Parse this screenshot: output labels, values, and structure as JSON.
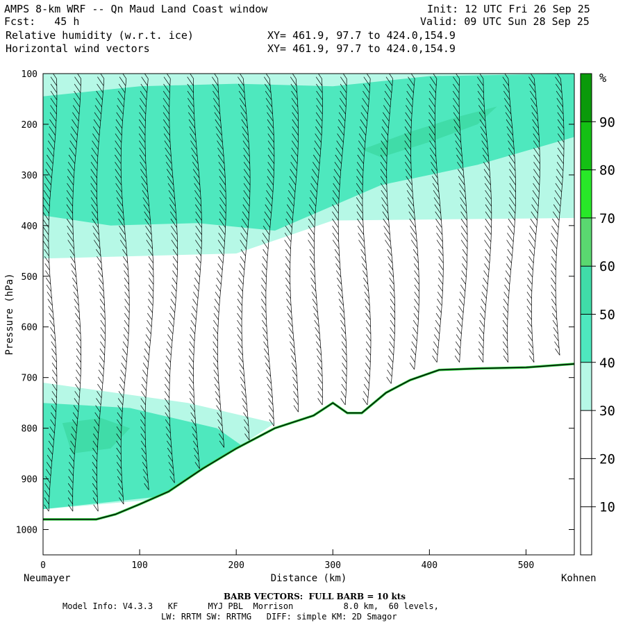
{
  "header": {
    "title": "AMPS 8-km WRF -- Qn Maud Land Coast window",
    "fcst": "Fcst:   45 h",
    "init": "Init: 12 UTC Fri 26 Sep 25",
    "valid": "Valid: 09 UTC Sun 28 Sep 25",
    "field1": "Relative humidity (w.r.t. ice)",
    "field2": "Horizontal wind vectors",
    "xy1": "XY= 461.9, 97.7 to 424.0,154.9",
    "xy2": "XY= 461.9, 97.7 to 424.0,154.9"
  },
  "footer": {
    "barb": "BARB VECTORS:  FULL BARB = 10 kts",
    "model_line1": "Model Info: V4.3.3   KF      MYJ PBL  Morrison          8.0 km,  60 levels,",
    "model_line2": "LW: RRTM SW: RRTMG   DIFF: simple KM: 2D Smagor"
  },
  "chart_data": {
    "type": "cross-section",
    "title": "Relative humidity (w.r.t. ice) and horizontal wind vectors",
    "xlabel": "Distance (km)",
    "ylabel": "Pressure (hPa)",
    "xlim": [
      0,
      550
    ],
    "ylim": [
      1050,
      100
    ],
    "x_ticks": [
      0,
      100,
      200,
      300,
      400,
      500
    ],
    "y_ticks": [
      100,
      200,
      300,
      400,
      500,
      600,
      700,
      800,
      900,
      1000
    ],
    "x_start_label": "Neumayer",
    "x_end_label": "Kohnen",
    "colorbar": {
      "unit": "%",
      "levels": [
        0,
        10,
        20,
        30,
        40,
        50,
        60,
        70,
        80,
        90,
        100
      ],
      "tick_labels": [
        "10",
        "20",
        "30",
        "40",
        "50",
        "60",
        "70",
        "80",
        "90"
      ],
      "colors": [
        "#ffffff",
        "#ffffff",
        "#ffffff",
        "#b6f8e6",
        "#4ee8be",
        "#40dca8",
        "#5ad870",
        "#28e828",
        "#14c014",
        "#0a9a0a"
      ]
    },
    "terrain": [
      [
        0,
        980
      ],
      [
        55,
        980
      ],
      [
        75,
        970
      ],
      [
        100,
        950
      ],
      [
        130,
        925
      ],
      [
        165,
        880
      ],
      [
        200,
        840
      ],
      [
        240,
        800
      ],
      [
        280,
        775
      ],
      [
        300,
        750
      ],
      [
        315,
        770
      ],
      [
        330,
        770
      ],
      [
        355,
        730
      ],
      [
        380,
        705
      ],
      [
        410,
        685
      ],
      [
        450,
        682
      ],
      [
        500,
        680
      ],
      [
        550,
        673
      ]
    ],
    "rh_regions": [
      {
        "level": 30,
        "points": [
          [
            0,
            100
          ],
          [
            550,
            100
          ],
          [
            550,
            385
          ],
          [
            300,
            390
          ],
          [
            200,
            455
          ],
          [
            0,
            465
          ]
        ]
      },
      {
        "level": 40,
        "points": [
          [
            0,
            145
          ],
          [
            100,
            125
          ],
          [
            200,
            120
          ],
          [
            300,
            125
          ],
          [
            400,
            105
          ],
          [
            550,
            100
          ],
          [
            550,
            225
          ],
          [
            450,
            280
          ],
          [
            350,
            320
          ],
          [
            240,
            410
          ],
          [
            160,
            395
          ],
          [
            70,
            400
          ],
          [
            0,
            380
          ]
        ]
      },
      {
        "level": 50,
        "points": [
          [
            330,
            250
          ],
          [
            380,
            215
          ],
          [
            430,
            185
          ],
          [
            470,
            165
          ],
          [
            450,
            200
          ],
          [
            400,
            235
          ],
          [
            350,
            265
          ]
        ]
      },
      {
        "level": 30,
        "points": [
          [
            0,
            710
          ],
          [
            150,
            750
          ],
          [
            240,
            790
          ],
          [
            120,
            940
          ],
          [
            0,
            960
          ]
        ]
      },
      {
        "level": 40,
        "points": [
          [
            0,
            750
          ],
          [
            90,
            760
          ],
          [
            180,
            800
          ],
          [
            210,
            840
          ],
          [
            120,
            935
          ],
          [
            0,
            960
          ]
        ]
      },
      {
        "level": 50,
        "points": [
          [
            20,
            790
          ],
          [
            60,
            780
          ],
          [
            90,
            800
          ],
          [
            70,
            840
          ],
          [
            30,
            850
          ]
        ]
      }
    ],
    "wind_columns": [
      10,
      35,
      60,
      85,
      110,
      135,
      160,
      185,
      210,
      235,
      260,
      285,
      310,
      335,
      360,
      385,
      410,
      435,
      460,
      485,
      510,
      535
    ]
  }
}
